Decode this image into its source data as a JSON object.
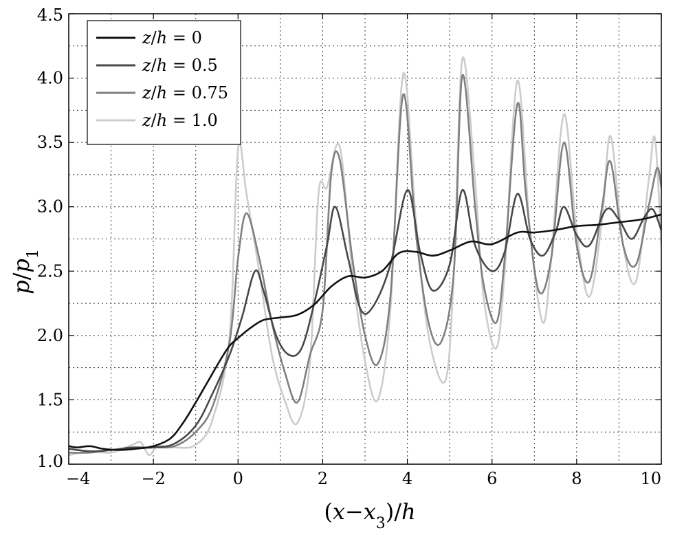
{
  "chart_data": {
    "type": "line",
    "xlabel": "(x−x3)/h",
    "ylabel": "p/p1",
    "xlim": [
      -4,
      10
    ],
    "ylim": [
      1.0,
      4.5
    ],
    "xticks": [
      -4,
      -2,
      0,
      2,
      4,
      6,
      8,
      10
    ],
    "xtick_labels": [
      "−4",
      "−2",
      "0",
      "2",
      "4",
      "6",
      "8",
      "10"
    ],
    "yticks": [
      1.0,
      1.5,
      2.0,
      2.5,
      3.0,
      3.5,
      4.0,
      4.5
    ],
    "ytick_labels": [
      "1.0",
      "1.5",
      "2.0",
      "2.5",
      "3.0",
      "3.5",
      "4.0",
      "4.5"
    ],
    "grid": true,
    "legend_position": "top-left",
    "series": [
      {
        "name": "z/h = 0",
        "color": "#111111",
        "points": [
          [
            -4.0,
            1.14
          ],
          [
            -3.8,
            1.13
          ],
          [
            -3.5,
            1.14
          ],
          [
            -3.2,
            1.12
          ],
          [
            -2.8,
            1.11
          ],
          [
            -2.4,
            1.12
          ],
          [
            -2.0,
            1.14
          ],
          [
            -1.6,
            1.2
          ],
          [
            -1.3,
            1.32
          ],
          [
            -1.0,
            1.48
          ],
          [
            -0.7,
            1.65
          ],
          [
            -0.4,
            1.82
          ],
          [
            -0.2,
            1.92
          ],
          [
            0.0,
            1.98
          ],
          [
            0.3,
            2.06
          ],
          [
            0.6,
            2.12
          ],
          [
            1.0,
            2.14
          ],
          [
            1.4,
            2.16
          ],
          [
            1.8,
            2.24
          ],
          [
            2.2,
            2.38
          ],
          [
            2.6,
            2.46
          ],
          [
            3.0,
            2.45
          ],
          [
            3.4,
            2.5
          ],
          [
            3.8,
            2.64
          ],
          [
            4.2,
            2.65
          ],
          [
            4.6,
            2.62
          ],
          [
            5.0,
            2.66
          ],
          [
            5.5,
            2.73
          ],
          [
            6.0,
            2.71
          ],
          [
            6.6,
            2.8
          ],
          [
            7.0,
            2.8
          ],
          [
            7.5,
            2.82
          ],
          [
            8.0,
            2.85
          ],
          [
            8.5,
            2.86
          ],
          [
            9.0,
            2.88
          ],
          [
            9.5,
            2.9
          ],
          [
            10.0,
            2.94
          ]
        ]
      },
      {
        "name": "z/h = 0.5",
        "color": "#484848",
        "points": [
          [
            -4.0,
            1.12
          ],
          [
            -3.5,
            1.1
          ],
          [
            -3.0,
            1.11
          ],
          [
            -2.5,
            1.13
          ],
          [
            -2.0,
            1.13
          ],
          [
            -1.5,
            1.16
          ],
          [
            -1.0,
            1.3
          ],
          [
            -0.6,
            1.55
          ],
          [
            -0.2,
            1.85
          ],
          [
            0.1,
            2.15
          ],
          [
            0.4,
            2.5
          ],
          [
            0.6,
            2.35
          ],
          [
            0.9,
            2.0
          ],
          [
            1.2,
            1.85
          ],
          [
            1.5,
            1.9
          ],
          [
            1.8,
            2.25
          ],
          [
            2.1,
            2.7
          ],
          [
            2.3,
            3.0
          ],
          [
            2.6,
            2.6
          ],
          [
            2.9,
            2.2
          ],
          [
            3.2,
            2.23
          ],
          [
            3.6,
            2.55
          ],
          [
            4.0,
            3.13
          ],
          [
            4.3,
            2.65
          ],
          [
            4.6,
            2.35
          ],
          [
            5.0,
            2.55
          ],
          [
            5.3,
            3.13
          ],
          [
            5.6,
            2.7
          ],
          [
            6.0,
            2.5
          ],
          [
            6.3,
            2.65
          ],
          [
            6.6,
            3.1
          ],
          [
            6.9,
            2.75
          ],
          [
            7.2,
            2.62
          ],
          [
            7.5,
            2.8
          ],
          [
            7.7,
            3.0
          ],
          [
            8.0,
            2.78
          ],
          [
            8.3,
            2.7
          ],
          [
            8.7,
            2.98
          ],
          [
            9.0,
            2.9
          ],
          [
            9.3,
            2.75
          ],
          [
            9.6,
            2.92
          ],
          [
            9.8,
            2.98
          ],
          [
            10.0,
            2.82
          ]
        ]
      },
      {
        "name": "z/h = 0.75",
        "color": "#808080",
        "points": [
          [
            -4.0,
            1.09
          ],
          [
            -3.5,
            1.09
          ],
          [
            -3.0,
            1.11
          ],
          [
            -2.5,
            1.12
          ],
          [
            -2.0,
            1.13
          ],
          [
            -1.5,
            1.14
          ],
          [
            -1.0,
            1.25
          ],
          [
            -0.6,
            1.45
          ],
          [
            -0.2,
            1.95
          ],
          [
            0.0,
            2.6
          ],
          [
            0.2,
            2.95
          ],
          [
            0.5,
            2.6
          ],
          [
            0.8,
            2.1
          ],
          [
            1.1,
            1.72
          ],
          [
            1.4,
            1.48
          ],
          [
            1.7,
            1.85
          ],
          [
            2.0,
            2.2
          ],
          [
            2.2,
            3.25
          ],
          [
            2.4,
            3.37
          ],
          [
            2.7,
            2.6
          ],
          [
            3.0,
            2.0
          ],
          [
            3.3,
            1.78
          ],
          [
            3.6,
            2.3
          ],
          [
            3.9,
            3.87
          ],
          [
            4.2,
            2.8
          ],
          [
            4.5,
            2.1
          ],
          [
            4.8,
            1.95
          ],
          [
            5.1,
            2.5
          ],
          [
            5.3,
            4.02
          ],
          [
            5.6,
            3.0
          ],
          [
            5.8,
            2.4
          ],
          [
            6.1,
            2.1
          ],
          [
            6.3,
            2.6
          ],
          [
            6.6,
            3.8
          ],
          [
            6.8,
            3.1
          ],
          [
            7.1,
            2.35
          ],
          [
            7.4,
            2.6
          ],
          [
            7.7,
            3.5
          ],
          [
            8.0,
            2.7
          ],
          [
            8.3,
            2.42
          ],
          [
            8.6,
            3.0
          ],
          [
            8.8,
            3.35
          ],
          [
            9.1,
            2.7
          ],
          [
            9.4,
            2.55
          ],
          [
            9.7,
            3.0
          ],
          [
            9.9,
            3.3
          ],
          [
            10.0,
            3.15
          ]
        ]
      },
      {
        "name": "z/h = 1.0",
        "color": "#cccccc",
        "points": [
          [
            -4.0,
            1.07
          ],
          [
            -3.5,
            1.1
          ],
          [
            -3.0,
            1.09
          ],
          [
            -2.5,
            1.15
          ],
          [
            -2.3,
            1.17
          ],
          [
            -2.1,
            1.07
          ],
          [
            -1.9,
            1.14
          ],
          [
            -1.5,
            1.13
          ],
          [
            -1.0,
            1.15
          ],
          [
            -0.6,
            1.35
          ],
          [
            -0.2,
            2.0
          ],
          [
            0.0,
            3.45
          ],
          [
            0.2,
            3.1
          ],
          [
            0.5,
            2.5
          ],
          [
            0.8,
            1.85
          ],
          [
            1.1,
            1.5
          ],
          [
            1.4,
            1.32
          ],
          [
            1.7,
            1.8
          ],
          [
            1.9,
            3.1
          ],
          [
            2.1,
            3.15
          ],
          [
            2.4,
            3.47
          ],
          [
            2.7,
            2.5
          ],
          [
            3.0,
            1.8
          ],
          [
            3.3,
            1.5
          ],
          [
            3.6,
            2.2
          ],
          [
            3.9,
            4.03
          ],
          [
            4.2,
            2.9
          ],
          [
            4.5,
            2.0
          ],
          [
            4.9,
            1.65
          ],
          [
            5.1,
            2.5
          ],
          [
            5.3,
            4.15
          ],
          [
            5.6,
            3.2
          ],
          [
            5.8,
            2.3
          ],
          [
            6.1,
            1.9
          ],
          [
            6.3,
            2.5
          ],
          [
            6.6,
            3.98
          ],
          [
            6.9,
            2.8
          ],
          [
            7.2,
            2.1
          ],
          [
            7.4,
            2.6
          ],
          [
            7.7,
            3.72
          ],
          [
            8.0,
            2.8
          ],
          [
            8.3,
            2.3
          ],
          [
            8.6,
            2.9
          ],
          [
            8.8,
            3.55
          ],
          [
            9.1,
            2.7
          ],
          [
            9.4,
            2.42
          ],
          [
            9.7,
            3.2
          ],
          [
            9.85,
            3.53
          ],
          [
            10.0,
            2.7
          ]
        ]
      }
    ]
  }
}
